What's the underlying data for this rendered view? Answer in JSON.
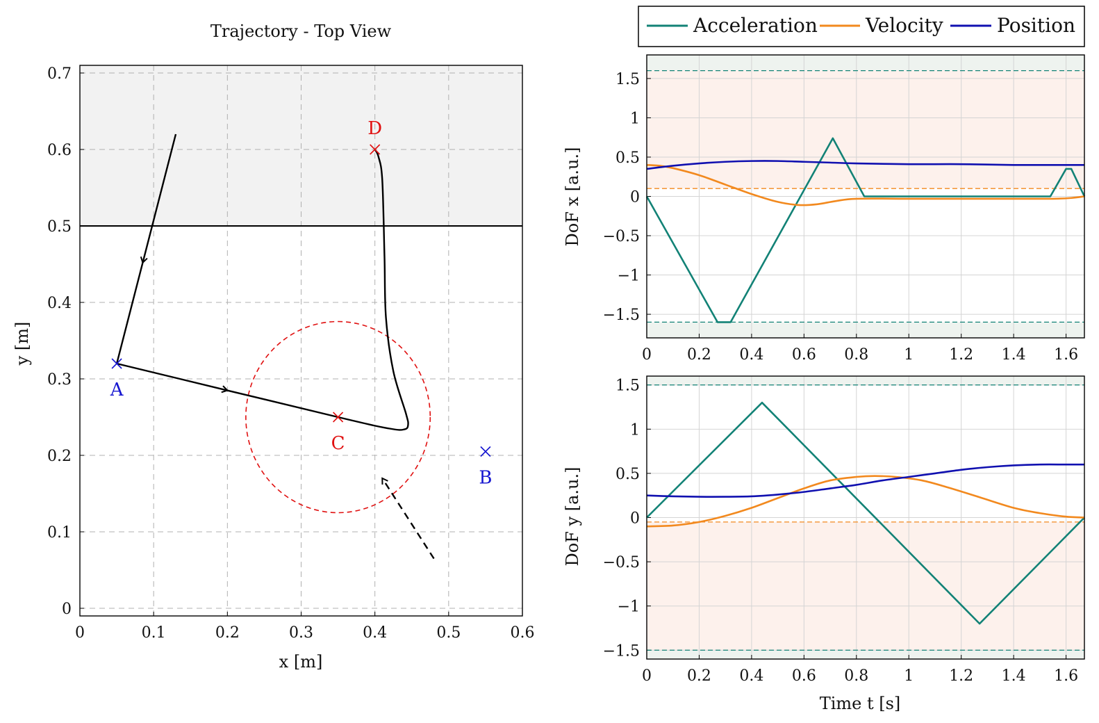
{
  "legend": {
    "items": [
      {
        "label": "Acceleration",
        "color": "#128276"
      },
      {
        "label": "Velocity",
        "color": "#f2891e"
      },
      {
        "label": "Position",
        "color": "#1010b0"
      }
    ]
  },
  "chart_data": [
    {
      "type": "line",
      "title": "Trajectory - Top View",
      "xlabel": "x [m]",
      "ylabel": "y [m]",
      "xlim": [
        0,
        0.6
      ],
      "ylim": [
        -0.01,
        0.71
      ],
      "xticks": [
        "0",
        "0.1",
        "0.2",
        "0.3",
        "0.4",
        "0.5",
        "0.6"
      ],
      "yticks": [
        "0",
        "0.1",
        "0.2",
        "0.3",
        "0.4",
        "0.5",
        "0.6",
        "0.7"
      ],
      "grid": "dashed",
      "shaded_region": {
        "y_from": 0.5,
        "y_to": 0.71,
        "color": "#f2f2f2"
      },
      "boundary_line_y": 0.5,
      "points": [
        {
          "label": "A",
          "x": 0.05,
          "y": 0.32,
          "color": "#1515d0",
          "label_pos": "below"
        },
        {
          "label": "B",
          "x": 0.55,
          "y": 0.205,
          "color": "#1515d0",
          "label_pos": "below"
        },
        {
          "label": "C",
          "x": 0.35,
          "y": 0.25,
          "color": "#e01010",
          "label_pos": "below"
        },
        {
          "label": "D",
          "x": 0.4,
          "y": 0.6,
          "color": "#e01010",
          "label_pos": "above"
        }
      ],
      "circle": {
        "cx": 0.35,
        "cy": 0.25,
        "r": 0.125,
        "color": "#e01010",
        "style": "dashed"
      },
      "path_1": [
        [
          0.13,
          0.62
        ],
        [
          0.05,
          0.32
        ]
      ],
      "path_2": [
        [
          0.05,
          0.32
        ],
        [
          0.35,
          0.25
        ],
        [
          0.42,
          0.235
        ],
        [
          0.44,
          0.234
        ],
        [
          0.445,
          0.24
        ],
        [
          0.442,
          0.255
        ],
        [
          0.425,
          0.31
        ],
        [
          0.415,
          0.38
        ],
        [
          0.413,
          0.46
        ],
        [
          0.41,
          0.56
        ],
        [
          0.405,
          0.59
        ],
        [
          0.4,
          0.6
        ]
      ],
      "dashed_arrow": {
        "from": [
          0.48,
          0.065
        ],
        "to": [
          0.41,
          0.17
        ]
      }
    },
    {
      "type": "line",
      "ylabel": "DoF x [a.u.]",
      "xlim": [
        0,
        1.67
      ],
      "ylim": [
        -1.8,
        1.8
      ],
      "xticks": [
        0,
        0.2,
        0.4,
        0.6,
        0.8,
        1,
        1.2,
        1.4,
        1.6
      ],
      "yticks": [
        -1.5,
        -1,
        -0.5,
        0,
        0.5,
        1,
        1.5
      ],
      "limit_accel": 1.6,
      "limit_vel": 0.1,
      "series": [
        {
          "name": "Acceleration",
          "color": "#128276",
          "x": [
            0,
            0.27,
            0.32,
            0.71,
            0.83,
            1.54,
            1.6,
            1.62,
            1.67
          ],
          "y": [
            0,
            -1.6,
            -1.6,
            0.74,
            0,
            0,
            0.35,
            0.35,
            0
          ]
        },
        {
          "name": "Velocity",
          "color": "#f2891e",
          "x": [
            0,
            0.05,
            0.1,
            0.2,
            0.3,
            0.4,
            0.5,
            0.58,
            0.65,
            0.72,
            0.8,
            1.0,
            1.2,
            1.4,
            1.55,
            1.62,
            1.67
          ],
          "y": [
            0.4,
            0.39,
            0.36,
            0.27,
            0.15,
            0.03,
            -0.07,
            -0.11,
            -0.1,
            -0.06,
            -0.03,
            -0.03,
            -0.03,
            -0.03,
            -0.03,
            -0.02,
            0
          ]
        },
        {
          "name": "Position",
          "color": "#1010b0",
          "x": [
            0,
            0.1,
            0.2,
            0.3,
            0.4,
            0.5,
            0.6,
            0.7,
            0.8,
            1.0,
            1.2,
            1.4,
            1.6,
            1.67
          ],
          "y": [
            0.35,
            0.39,
            0.42,
            0.44,
            0.45,
            0.45,
            0.44,
            0.43,
            0.42,
            0.41,
            0.41,
            0.4,
            0.4,
            0.4
          ]
        }
      ]
    },
    {
      "type": "line",
      "xlabel": "Time t [s]",
      "ylabel": "DoF y [a.u.]",
      "xlim": [
        0,
        1.67
      ],
      "ylim": [
        -1.6,
        1.6
      ],
      "xticks": [
        0,
        0.2,
        0.4,
        0.6,
        0.8,
        1,
        1.2,
        1.4,
        1.6
      ],
      "yticks": [
        -1.5,
        -1,
        -0.5,
        0,
        0.5,
        1,
        1.5
      ],
      "limit_accel": 1.5,
      "limit_vel": -0.05,
      "series": [
        {
          "name": "Acceleration",
          "color": "#128276",
          "x": [
            0,
            0.44,
            1.27,
            1.67
          ],
          "y": [
            0,
            1.3,
            -1.2,
            0
          ]
        },
        {
          "name": "Velocity",
          "color": "#f2891e",
          "x": [
            0,
            0.1,
            0.2,
            0.3,
            0.4,
            0.5,
            0.6,
            0.7,
            0.8,
            0.87,
            0.95,
            1.05,
            1.15,
            1.27,
            1.4,
            1.5,
            1.6,
            1.67
          ],
          "y": [
            -0.1,
            -0.09,
            -0.05,
            0.02,
            0.11,
            0.22,
            0.33,
            0.42,
            0.46,
            0.47,
            0.46,
            0.42,
            0.34,
            0.23,
            0.11,
            0.05,
            0.01,
            0
          ]
        },
        {
          "name": "Position",
          "color": "#1010b0",
          "x": [
            0,
            0.1,
            0.2,
            0.3,
            0.4,
            0.5,
            0.6,
            0.7,
            0.8,
            0.9,
            1.0,
            1.1,
            1.2,
            1.3,
            1.4,
            1.5,
            1.6,
            1.67
          ],
          "y": [
            0.25,
            0.24,
            0.235,
            0.235,
            0.24,
            0.26,
            0.29,
            0.33,
            0.37,
            0.42,
            0.46,
            0.5,
            0.54,
            0.57,
            0.59,
            0.6,
            0.6,
            0.6
          ]
        }
      ]
    }
  ]
}
